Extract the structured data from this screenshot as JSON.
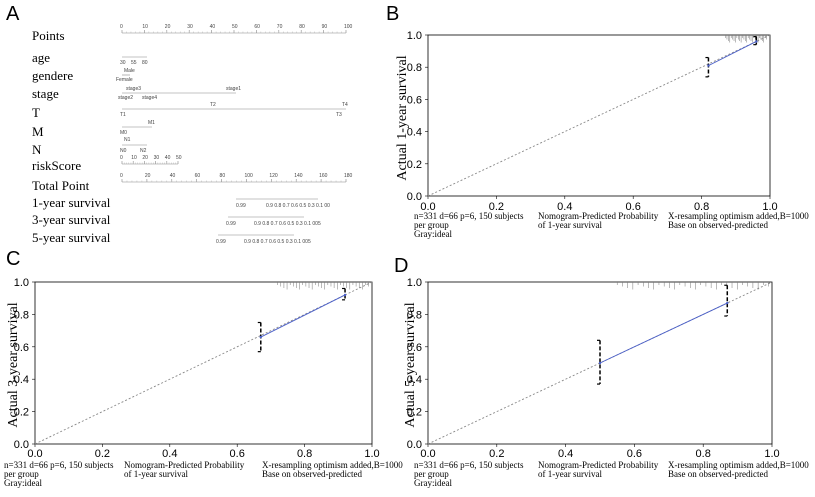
{
  "panel_labels": {
    "a": "A",
    "b": "B",
    "c": "C",
    "d": "D"
  },
  "nomogram": {
    "rows": [
      {
        "label": "Points",
        "ticks": [
          "0",
          "10",
          "20",
          "30",
          "40",
          "50",
          "60",
          "70",
          "80",
          "90",
          "100"
        ]
      },
      {
        "label": "age",
        "ticks": [
          "30",
          "55",
          "80"
        ]
      },
      {
        "label": "gendere",
        "ticks": [
          "Male",
          "Female"
        ]
      },
      {
        "label": "stage",
        "ticks": [
          "stage3",
          "stage1",
          "stage2",
          "stage4"
        ]
      },
      {
        "label": "T",
        "ticks": [
          "T2",
          "T4",
          "T1",
          "T3"
        ]
      },
      {
        "label": "M",
        "ticks": [
          "M1",
          "M0"
        ]
      },
      {
        "label": "N",
        "ticks": [
          "N1",
          "N0",
          "N2"
        ]
      },
      {
        "label": "riskScore",
        "ticks": [
          "0",
          "10",
          "20",
          "30",
          "40",
          "50"
        ]
      },
      {
        "label": "Total Point",
        "ticks": [
          "0",
          "20",
          "40",
          "60",
          "80",
          "100",
          "120",
          "140",
          "160",
          "180"
        ]
      },
      {
        "label": "1-year survival",
        "ticks": [
          "0.99",
          "0.9 0.8 0.7 0.6 0.5 0.3 0.1 00"
        ]
      },
      {
        "label": "3-year survival",
        "ticks": [
          "0.99",
          "0.9 0.8 0.7 0.6 0.5 0.3 0.1 005"
        ]
      },
      {
        "label": "5-year survival",
        "ticks": [
          "0.99",
          "0.9 0.8 0.7 0.6 0.5 0.3 0.1 005"
        ]
      }
    ]
  },
  "chart_data": [
    {
      "panel": "B",
      "type": "line",
      "xlabel": "Nomogram-Predicted Probability of 1-year survival",
      "ylabel": "Actual 1-year survival",
      "xlim": [
        0,
        1
      ],
      "ylim": [
        0,
        1
      ],
      "ticks": [
        "0.0",
        "0.2",
        "0.4",
        "0.6",
        "0.8",
        "1.0"
      ],
      "series": [
        {
          "name": "Gray:ideal",
          "x": [
            0,
            1
          ],
          "y": [
            0,
            1
          ]
        },
        {
          "name": "observed",
          "x": [
            0.82,
            0.96
          ],
          "y": [
            0.81,
            0.96
          ],
          "ci_low": [
            0.74,
            0.94
          ],
          "ci_high": [
            0.86,
            0.99
          ]
        }
      ],
      "notes": {
        "left": [
          "n=331 d=66 p=6, 150 subjects",
          "per group",
          "Gray:ideal"
        ],
        "mid": [
          "Nomogram-Predicted Probability",
          "of 1-year survival"
        ],
        "right": [
          "X-resampling optimism added,B=1000",
          "Base on observed-predicted"
        ]
      }
    },
    {
      "panel": "C",
      "type": "line",
      "xlabel": "Nomogram-Predicted Probability of 1-year survival",
      "ylabel": "Actual 3-year survival",
      "xlim": [
        0,
        1
      ],
      "ylim": [
        0,
        1
      ],
      "ticks": [
        "0.0",
        "0.2",
        "0.4",
        "0.6",
        "0.8",
        "1.0"
      ],
      "series": [
        {
          "name": "Gray:ideal",
          "x": [
            0,
            1
          ],
          "y": [
            0,
            1
          ]
        },
        {
          "name": "observed",
          "x": [
            0.67,
            0.92
          ],
          "y": [
            0.66,
            0.92
          ],
          "ci_low": [
            0.57,
            0.89
          ],
          "ci_high": [
            0.75,
            0.96
          ]
        }
      ],
      "notes": {
        "left": [
          "n=331 d=66 p=6, 150 subjects",
          "per group",
          "Gray:ideal"
        ],
        "mid": [
          "Nomogram-Predicted Probability",
          "of 1-year survival"
        ],
        "right": [
          "X-resampling optimism added,B=1000",
          "Base on observed-predicted"
        ]
      }
    },
    {
      "panel": "D",
      "type": "line",
      "xlabel": "Nomogram-Predicted Probability of 1-year survival",
      "ylabel": "Actual 5-year survival",
      "xlim": [
        0,
        1
      ],
      "ylim": [
        0,
        1
      ],
      "ticks": [
        "0.0",
        "0.2",
        "0.4",
        "0.6",
        "0.8",
        "1.0"
      ],
      "series": [
        {
          "name": "Gray:ideal",
          "x": [
            0,
            1
          ],
          "y": [
            0,
            1
          ]
        },
        {
          "name": "observed",
          "x": [
            0.5,
            0.87
          ],
          "y": [
            0.5,
            0.87
          ],
          "ci_low": [
            0.37,
            0.79
          ],
          "ci_high": [
            0.64,
            0.98
          ]
        }
      ],
      "notes": {
        "left": [
          "n=331 d=66 p=6, 150 subjects",
          "per group",
          "Gray:ideal"
        ],
        "mid": [
          "Nomogram-Predicted Probability",
          "of 1-year survival"
        ],
        "right": [
          "X-resampling optimism added,B=1000",
          "Base on observed-predicted"
        ]
      }
    }
  ]
}
